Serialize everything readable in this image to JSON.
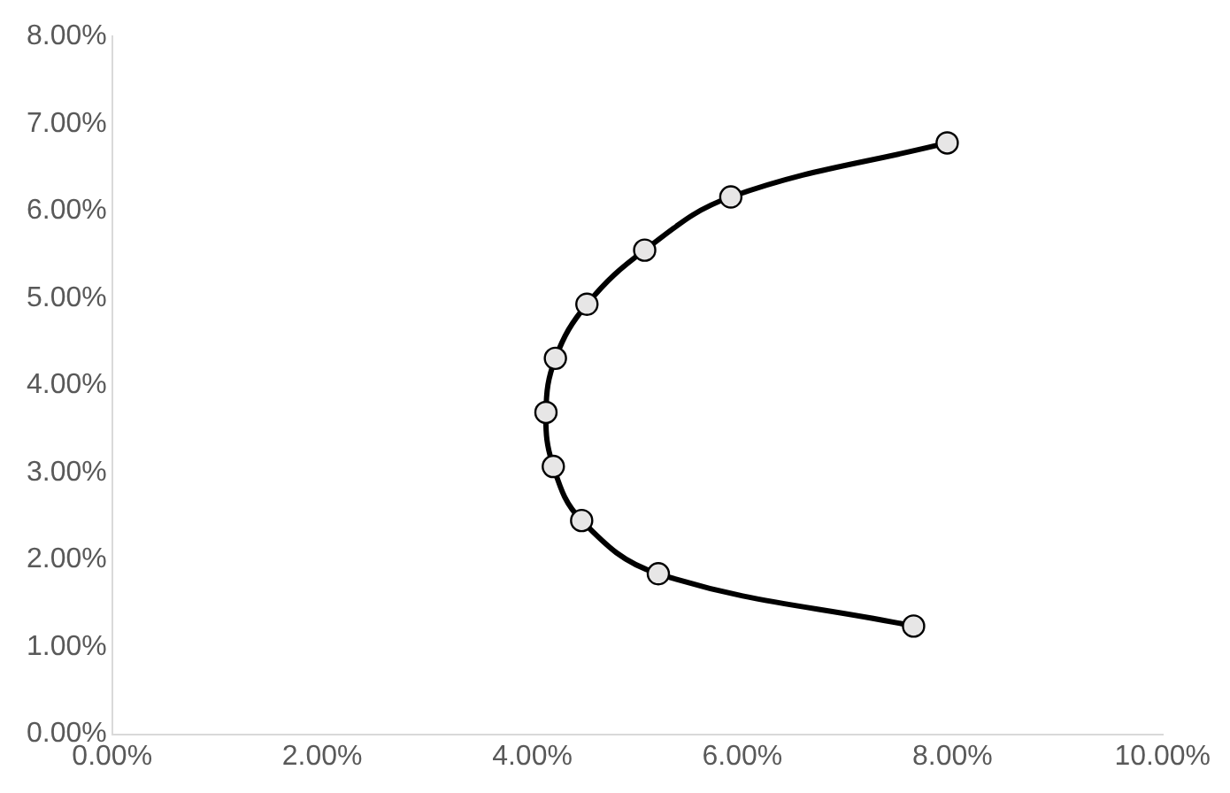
{
  "chart_data": {
    "type": "line",
    "marker": "circle",
    "line_style": "solid",
    "grid": false,
    "legend": false,
    "x": [
      7.63,
      5.2,
      4.47,
      4.2,
      4.13,
      4.22,
      4.52,
      5.07,
      5.89,
      7.95
    ],
    "series": [
      {
        "color": "#000000",
        "values": [
          1.24,
          1.84,
          2.45,
          3.07,
          3.69,
          4.31,
          4.93,
          5.55,
          6.16,
          6.78
        ]
      }
    ],
    "xlim": [
      0,
      10
    ],
    "ylim": [
      0,
      8
    ],
    "xticks": [
      {
        "value": 0,
        "label": "0.00%"
      },
      {
        "value": 2,
        "label": "2.00%"
      },
      {
        "value": 4,
        "label": "4.00%"
      },
      {
        "value": 6,
        "label": "6.00%"
      },
      {
        "value": 8,
        "label": "8.00%"
      },
      {
        "value": 10,
        "label": "10.00%"
      }
    ],
    "yticks": [
      {
        "value": 0,
        "label": "0.00%"
      },
      {
        "value": 1,
        "label": "1.00%"
      },
      {
        "value": 2,
        "label": "2.00%"
      },
      {
        "value": 3,
        "label": "3.00%"
      },
      {
        "value": 4,
        "label": "4.00%"
      },
      {
        "value": 5,
        "label": "5.00%"
      },
      {
        "value": 6,
        "label": "6.00%"
      },
      {
        "value": 7,
        "label": "7.00%"
      },
      {
        "value": 8,
        "label": "8.00%"
      }
    ]
  }
}
